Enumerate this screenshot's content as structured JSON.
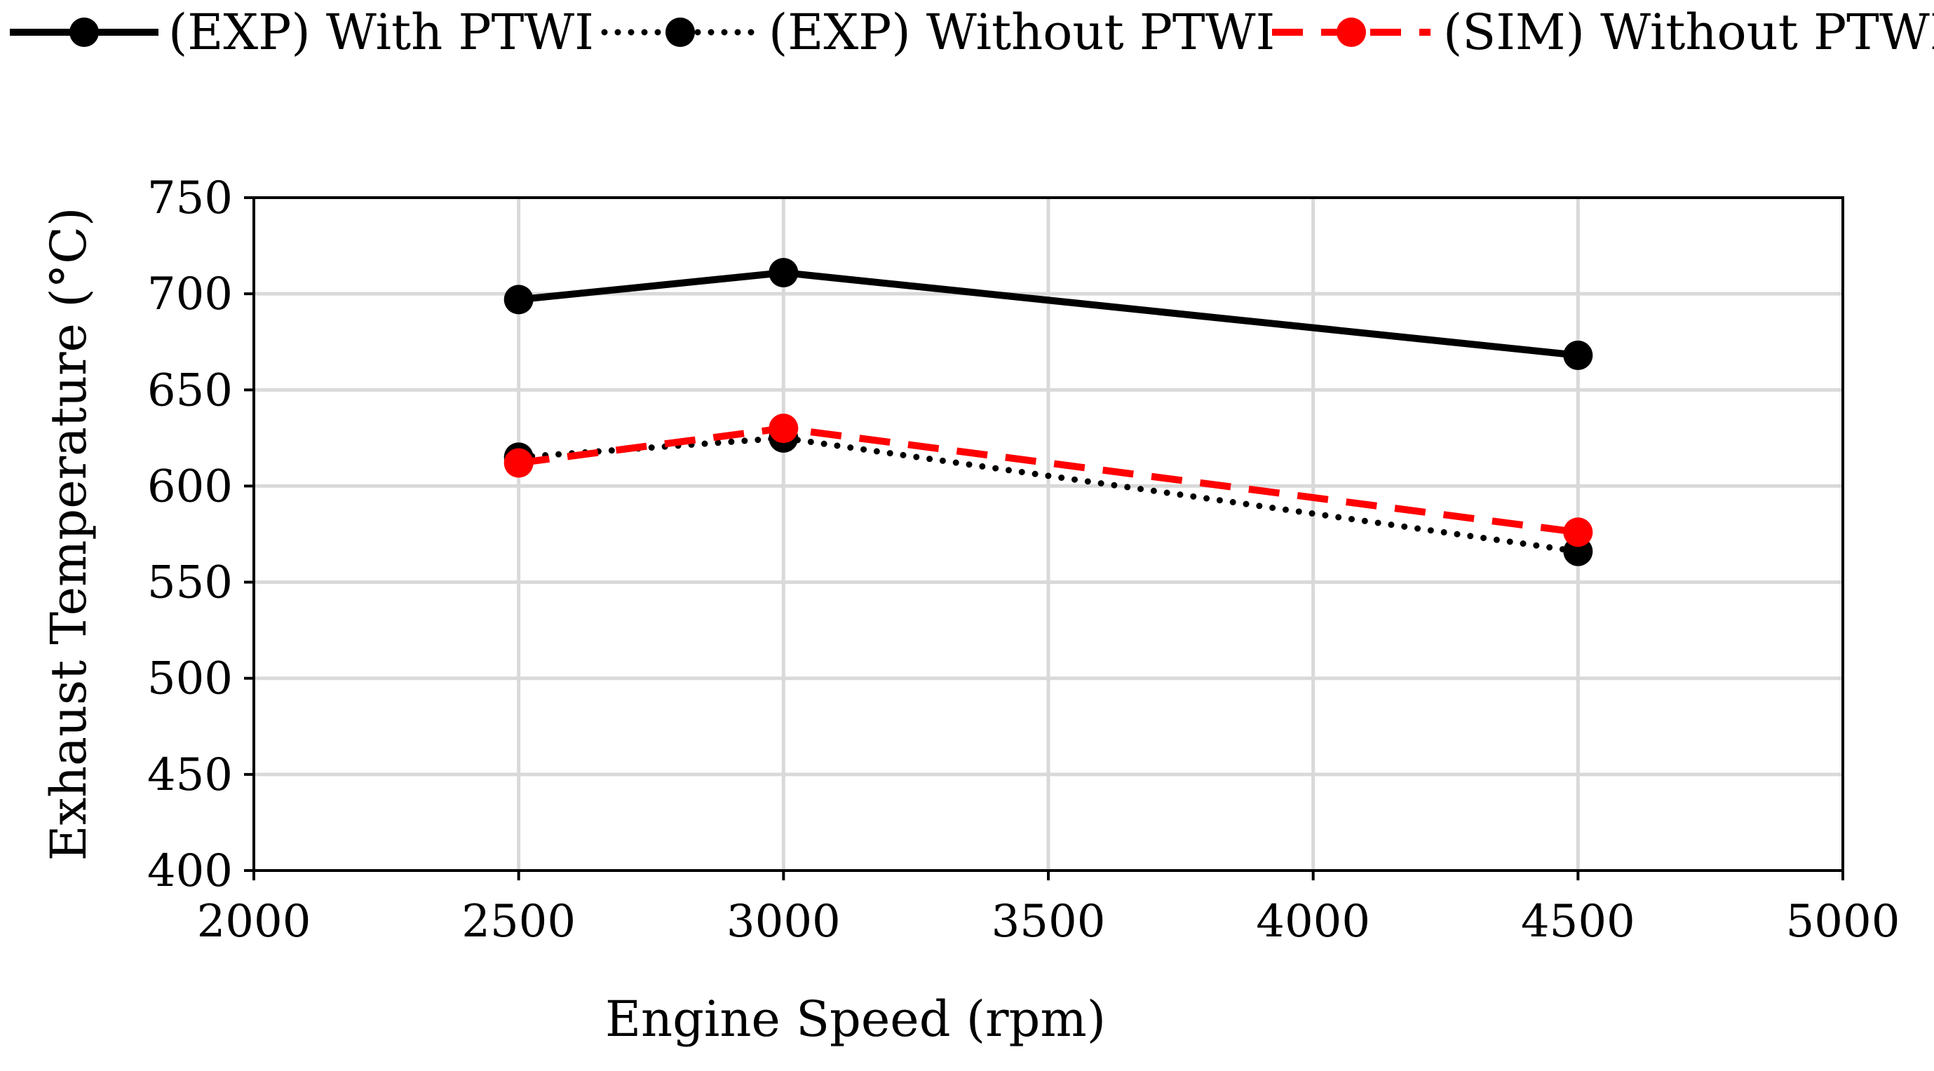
{
  "chart_data": {
    "type": "line",
    "title": "",
    "xlabel": "Engine Speed (rpm)",
    "ylabel": "Exhaust Temperature (°C)",
    "xlim": [
      2000,
      5000
    ],
    "ylim": [
      400,
      750
    ],
    "xticks": [
      2000,
      2500,
      3000,
      3500,
      4000,
      4500,
      5000
    ],
    "yticks": [
      400,
      450,
      500,
      550,
      600,
      650,
      700,
      750
    ],
    "grid": true,
    "legend_position": "top",
    "series": [
      {
        "name": "(EXP) With PTWI",
        "style": "solid",
        "color": "#000000",
        "x": [
          2500,
          3000,
          4500
        ],
        "y": [
          697,
          711,
          668
        ]
      },
      {
        "name": "(EXP) Without PTWI",
        "style": "dotted",
        "color": "#000000",
        "x": [
          2500,
          3000,
          4500
        ],
        "y": [
          615,
          625,
          566
        ]
      },
      {
        "name": "(SIM) Without PTWI",
        "style": "dashed",
        "color": "#ff0000",
        "x": [
          2500,
          3000,
          4500
        ],
        "y": [
          612,
          630,
          576
        ]
      }
    ]
  }
}
